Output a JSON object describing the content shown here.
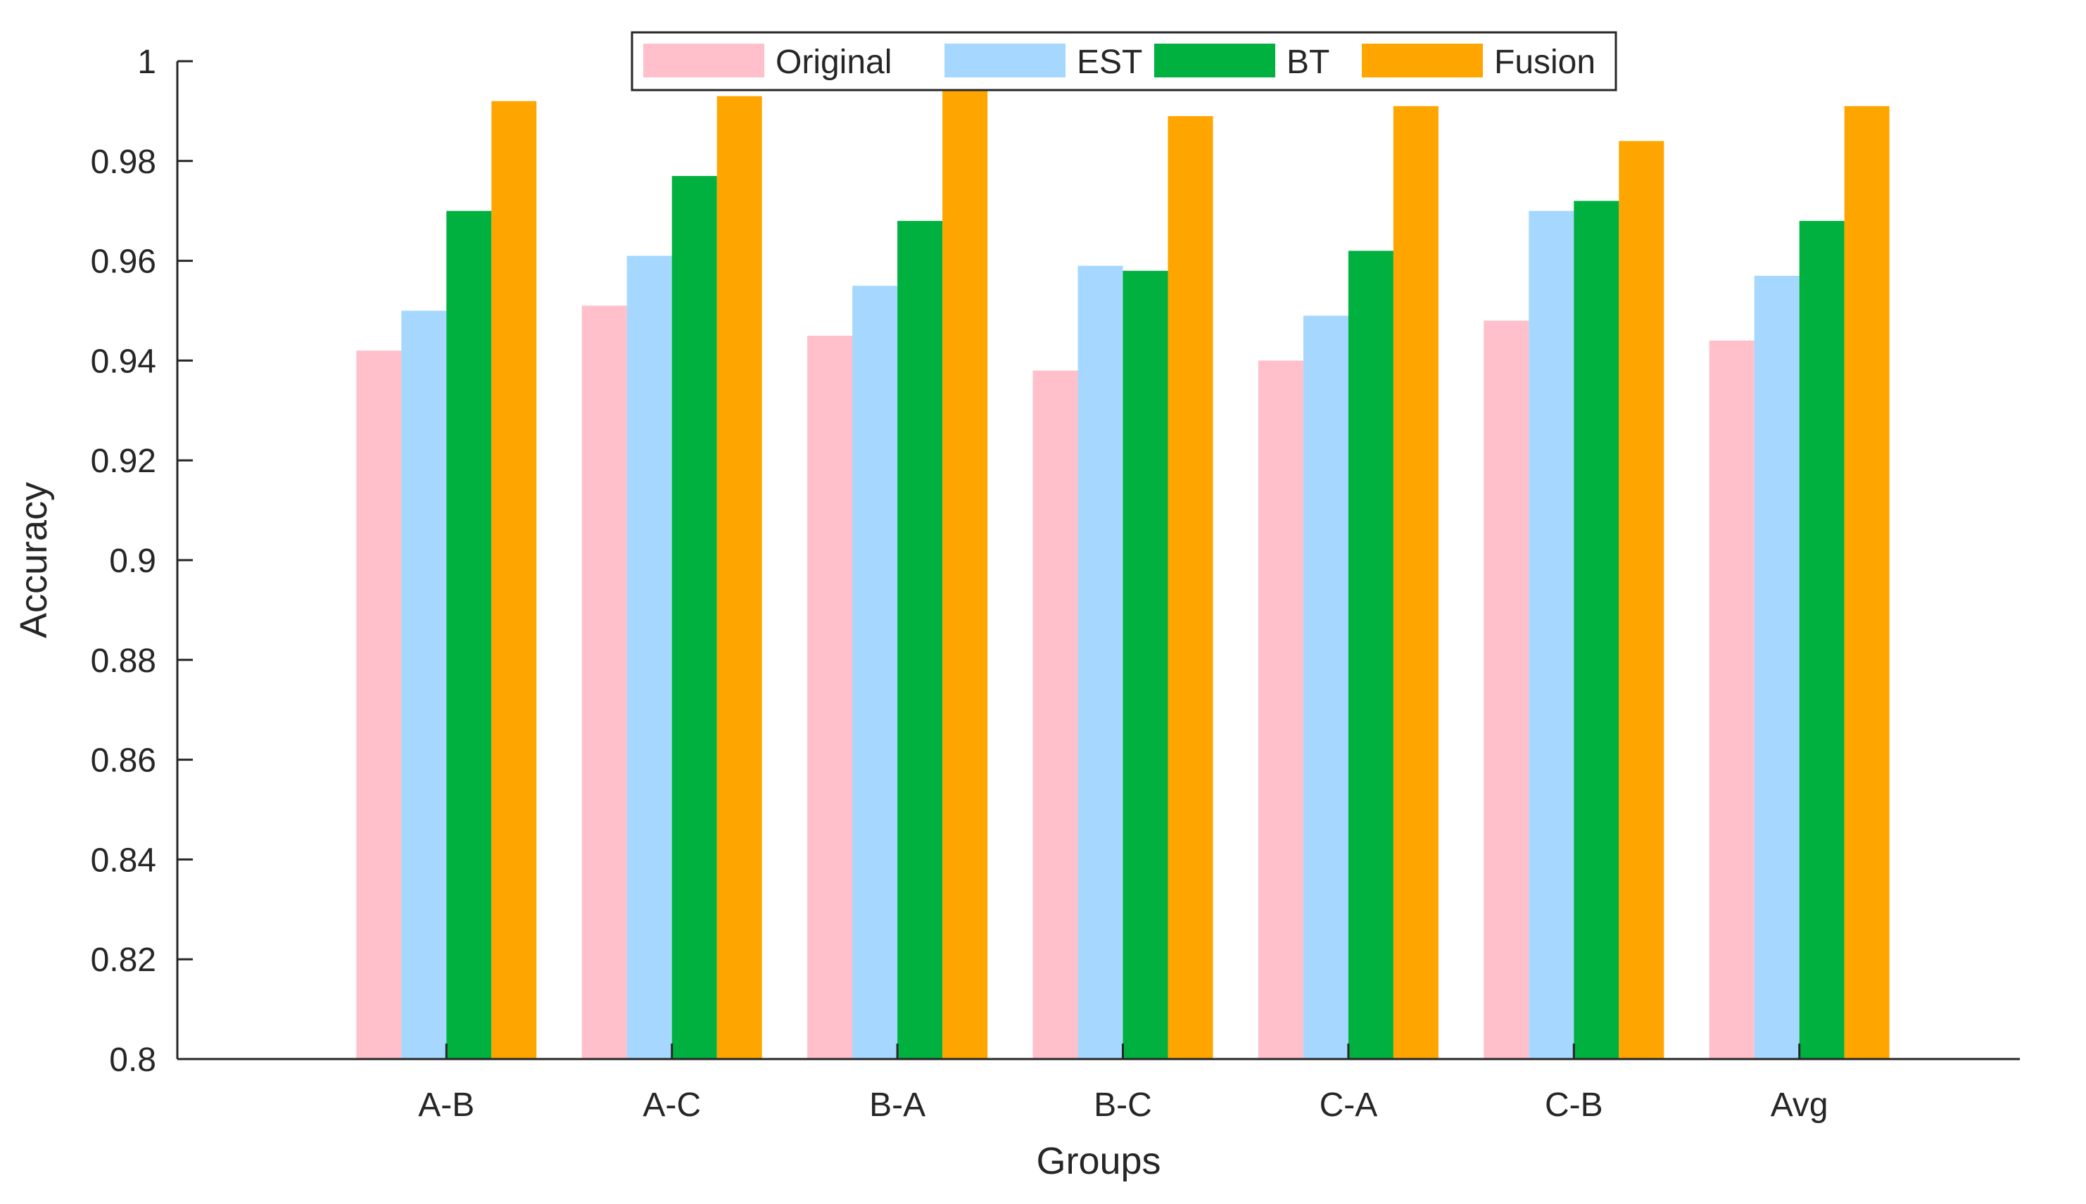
{
  "chart_data": {
    "type": "bar",
    "title": "",
    "xlabel": "Groups",
    "ylabel": "Accuracy",
    "ylim": [
      0.8,
      1.0
    ],
    "yticks": [
      "0.8",
      "0.82",
      "0.84",
      "0.86",
      "0.88",
      "0.9",
      "0.92",
      "0.94",
      "0.96",
      "0.98",
      "1"
    ],
    "ytick_values": [
      0.8,
      0.82,
      0.84,
      0.86,
      0.88,
      0.9,
      0.92,
      0.94,
      0.96,
      0.98,
      1.0
    ],
    "categories": [
      "A-B",
      "A-C",
      "B-A",
      "B-C",
      "C-A",
      "C-B",
      "Avg"
    ],
    "legend_position": "top-center",
    "grid": false,
    "series": [
      {
        "name": "Original",
        "color": "#ffc0cb",
        "values": [
          0.942,
          0.951,
          0.945,
          0.938,
          0.94,
          0.948,
          0.944
        ]
      },
      {
        "name": "EST",
        "color": "#a6d8ff",
        "values": [
          0.95,
          0.961,
          0.955,
          0.959,
          0.949,
          0.97,
          0.957
        ]
      },
      {
        "name": "BT",
        "color": "#00b140",
        "values": [
          0.97,
          0.977,
          0.968,
          0.958,
          0.962,
          0.972,
          0.968
        ]
      },
      {
        "name": "Fusion",
        "color": "#ffa500",
        "values": [
          0.992,
          0.993,
          0.995,
          0.989,
          0.991,
          0.984,
          0.991
        ]
      }
    ]
  }
}
